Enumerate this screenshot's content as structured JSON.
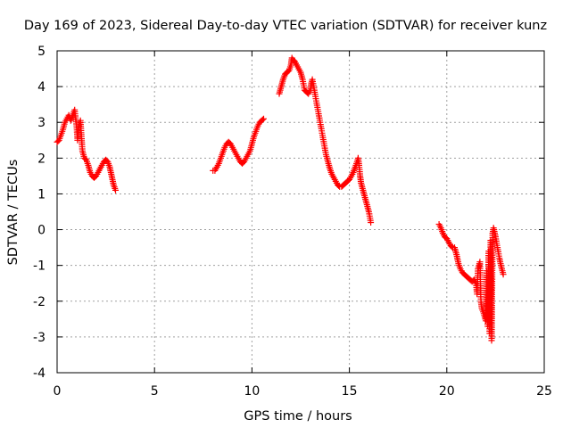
{
  "chart_data": {
    "type": "scatter",
    "title": "Day 169 of 2023, Sidereal Day-to-day VTEC variation (SDTVAR) for receiver kunz",
    "xlabel": "GPS time / hours",
    "ylabel": "SDTVAR / TECUs",
    "xlim": [
      0,
      25
    ],
    "ylim": [
      -4,
      5
    ],
    "x_ticks": [
      "0",
      "5",
      "10",
      "15",
      "20",
      "25"
    ],
    "y_ticks": [
      "5",
      "4",
      "3",
      "2",
      "1",
      "0",
      "-1",
      "-2",
      "-3",
      "-4"
    ],
    "grid": true,
    "legend": "none",
    "marker": "plus",
    "series_color": "#ff0000",
    "series": [
      {
        "values": [
          [
            0.0,
            2.45
          ],
          [
            0.1,
            2.5
          ],
          [
            0.2,
            2.65
          ],
          [
            0.3,
            2.8
          ],
          [
            0.4,
            3.0
          ],
          [
            0.5,
            3.1
          ],
          [
            0.6,
            3.2
          ],
          [
            0.7,
            3.05
          ],
          [
            0.8,
            3.2
          ],
          [
            0.9,
            3.35
          ],
          [
            1.0,
            2.9
          ],
          [
            1.05,
            2.5
          ],
          [
            1.1,
            2.85
          ],
          [
            1.2,
            3.05
          ],
          [
            1.25,
            2.6
          ],
          [
            1.3,
            2.2
          ],
          [
            1.4,
            2.0
          ],
          [
            1.5,
            1.95
          ],
          [
            1.6,
            1.8
          ],
          [
            1.7,
            1.6
          ],
          [
            1.8,
            1.5
          ],
          [
            1.9,
            1.45
          ],
          [
            2.0,
            1.5
          ],
          [
            2.1,
            1.6
          ],
          [
            2.2,
            1.7
          ],
          [
            2.3,
            1.8
          ],
          [
            2.4,
            1.9
          ],
          [
            2.5,
            1.95
          ],
          [
            2.6,
            1.9
          ],
          [
            2.7,
            1.75
          ],
          [
            2.8,
            1.5
          ],
          [
            2.9,
            1.25
          ],
          [
            3.0,
            1.1
          ]
        ]
      },
      {
        "values": [
          [
            8.0,
            1.65
          ],
          [
            8.1,
            1.65
          ],
          [
            8.2,
            1.75
          ],
          [
            8.3,
            1.85
          ],
          [
            8.4,
            2.0
          ],
          [
            8.5,
            2.15
          ],
          [
            8.6,
            2.3
          ],
          [
            8.7,
            2.4
          ],
          [
            8.8,
            2.45
          ],
          [
            8.9,
            2.4
          ],
          [
            9.0,
            2.3
          ],
          [
            9.1,
            2.2
          ],
          [
            9.2,
            2.1
          ],
          [
            9.3,
            2.0
          ],
          [
            9.4,
            1.9
          ],
          [
            9.5,
            1.85
          ],
          [
            9.6,
            1.9
          ],
          [
            9.7,
            2.0
          ],
          [
            9.8,
            2.1
          ],
          [
            9.9,
            2.2
          ],
          [
            10.0,
            2.4
          ],
          [
            10.1,
            2.6
          ],
          [
            10.2,
            2.75
          ],
          [
            10.3,
            2.9
          ],
          [
            10.4,
            3.0
          ],
          [
            10.5,
            3.05
          ],
          [
            10.6,
            3.1
          ]
        ]
      },
      {
        "values": [
          [
            11.4,
            3.8
          ],
          [
            11.5,
            4.0
          ],
          [
            11.6,
            4.2
          ],
          [
            11.7,
            4.35
          ],
          [
            11.8,
            4.4
          ],
          [
            11.9,
            4.45
          ],
          [
            12.0,
            4.6
          ],
          [
            12.05,
            4.8
          ],
          [
            12.1,
            4.75
          ],
          [
            12.2,
            4.7
          ],
          [
            12.3,
            4.6
          ],
          [
            12.4,
            4.5
          ],
          [
            12.5,
            4.4
          ],
          [
            12.6,
            4.2
          ],
          [
            12.7,
            3.9
          ],
          [
            12.8,
            3.85
          ],
          [
            12.9,
            3.8
          ],
          [
            13.0,
            3.9
          ],
          [
            13.05,
            4.1
          ],
          [
            13.1,
            4.2
          ],
          [
            13.2,
            3.9
          ],
          [
            13.3,
            3.6
          ],
          [
            13.4,
            3.3
          ],
          [
            13.5,
            3.0
          ],
          [
            13.6,
            2.7
          ],
          [
            13.7,
            2.4
          ],
          [
            13.8,
            2.1
          ],
          [
            13.9,
            1.9
          ],
          [
            14.0,
            1.7
          ],
          [
            14.1,
            1.55
          ],
          [
            14.2,
            1.45
          ],
          [
            14.3,
            1.35
          ],
          [
            14.4,
            1.25
          ],
          [
            14.5,
            1.2
          ],
          [
            14.6,
            1.2
          ],
          [
            14.7,
            1.25
          ],
          [
            14.8,
            1.3
          ],
          [
            14.9,
            1.35
          ],
          [
            15.0,
            1.4
          ],
          [
            15.1,
            1.5
          ],
          [
            15.2,
            1.6
          ],
          [
            15.3,
            1.75
          ],
          [
            15.4,
            1.9
          ],
          [
            15.45,
            2.0
          ],
          [
            15.5,
            1.8
          ],
          [
            15.55,
            1.5
          ],
          [
            15.6,
            1.3
          ],
          [
            15.7,
            1.1
          ],
          [
            15.8,
            0.9
          ],
          [
            15.9,
            0.7
          ],
          [
            16.0,
            0.5
          ],
          [
            16.1,
            0.2
          ]
        ]
      },
      {
        "values": [
          [
            19.6,
            0.15
          ],
          [
            19.7,
            0.05
          ],
          [
            19.8,
            -0.1
          ],
          [
            19.9,
            -0.2
          ],
          [
            20.0,
            -0.25
          ],
          [
            20.1,
            -0.35
          ],
          [
            20.2,
            -0.45
          ],
          [
            20.3,
            -0.5
          ],
          [
            20.4,
            -0.5
          ],
          [
            20.5,
            -0.7
          ],
          [
            20.6,
            -0.95
          ],
          [
            20.7,
            -1.1
          ],
          [
            20.8,
            -1.2
          ],
          [
            20.9,
            -1.25
          ],
          [
            21.0,
            -1.3
          ],
          [
            21.1,
            -1.35
          ],
          [
            21.2,
            -1.4
          ],
          [
            21.3,
            -1.45
          ],
          [
            21.4,
            -1.4
          ],
          [
            21.5,
            -1.5
          ],
          [
            21.55,
            -1.8
          ],
          [
            21.6,
            -1.1
          ],
          [
            21.7,
            -0.9
          ],
          [
            21.75,
            -2.0
          ],
          [
            21.8,
            -2.2
          ],
          [
            21.9,
            -2.35
          ],
          [
            22.0,
            -2.55
          ],
          [
            22.05,
            -1.15
          ],
          [
            22.1,
            -2.7
          ],
          [
            22.15,
            -0.6
          ],
          [
            22.2,
            -2.9
          ],
          [
            22.25,
            -0.3
          ],
          [
            22.3,
            -3.1
          ],
          [
            22.35,
            -0.1
          ],
          [
            22.4,
            0.05
          ],
          [
            22.5,
            -0.2
          ],
          [
            22.6,
            -0.5
          ],
          [
            22.7,
            -0.8
          ],
          [
            22.8,
            -1.05
          ],
          [
            22.9,
            -1.25
          ]
        ]
      }
    ]
  }
}
